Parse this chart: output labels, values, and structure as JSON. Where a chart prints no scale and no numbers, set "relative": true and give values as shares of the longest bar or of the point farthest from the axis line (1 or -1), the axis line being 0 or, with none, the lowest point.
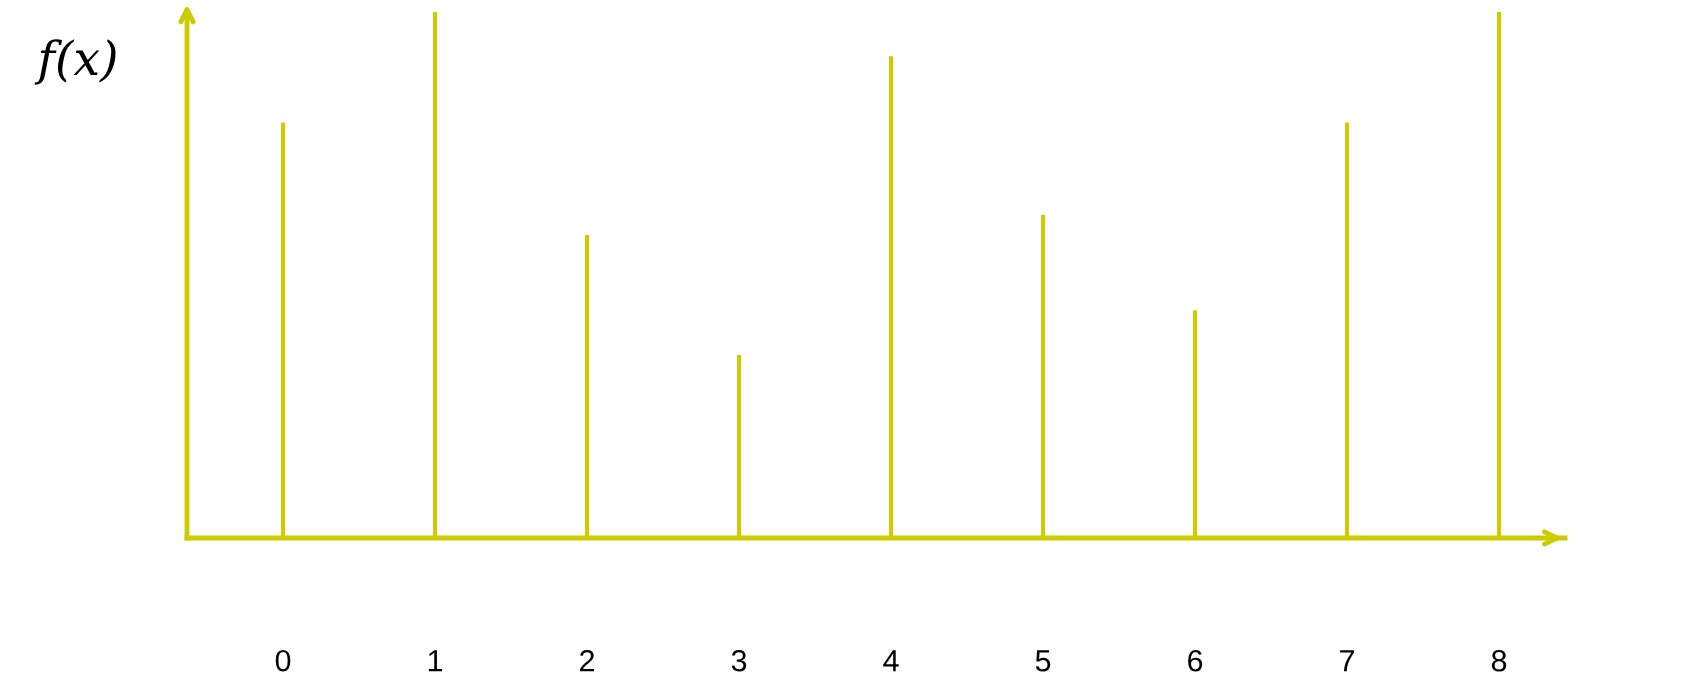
{
  "chart_data": {
    "type": "bar",
    "ylabel": "f(x)",
    "relative": true,
    "color": "#cccc00",
    "categories": [
      "0",
      "1",
      "2",
      "3",
      "4",
      "5",
      "6",
      "7",
      "8"
    ],
    "values": [
      0.79,
      1,
      0.576,
      0.348,
      0.916,
      0.614,
      0.433,
      0.79,
      1
    ]
  }
}
